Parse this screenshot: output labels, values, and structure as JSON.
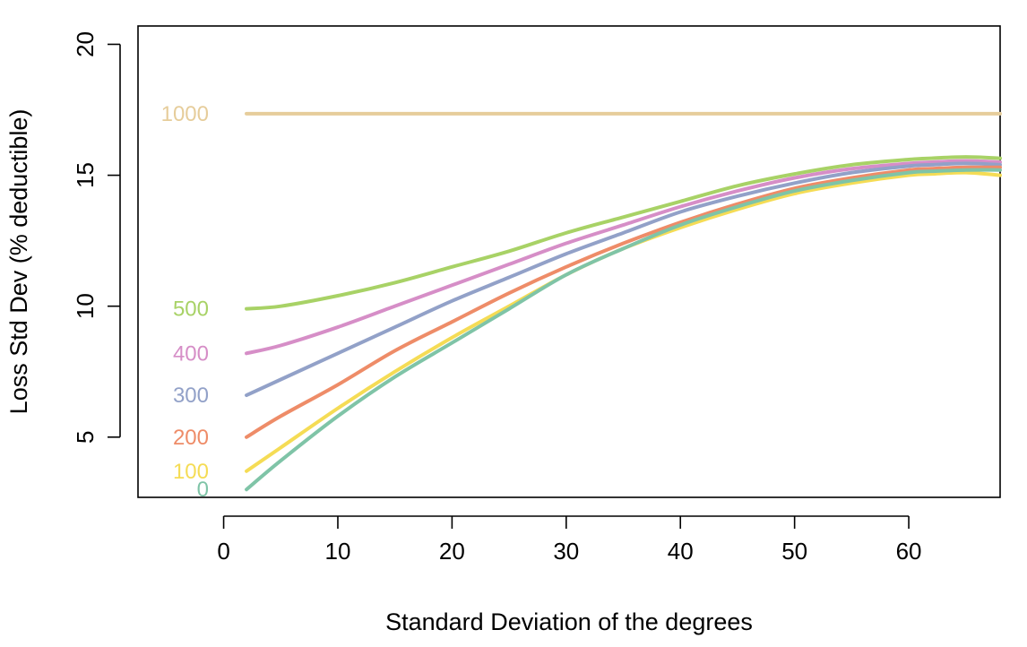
{
  "chart_data": {
    "type": "line",
    "title": "",
    "xlabel": "Standard Deviation of the degrees",
    "ylabel": "Loss Std Dev (% deductible)",
    "xlim": [
      -7.5,
      68
    ],
    "ylim": [
      2.7,
      20.7
    ],
    "x_ticks": [
      0,
      10,
      20,
      30,
      40,
      50,
      60
    ],
    "y_ticks": [
      5,
      10,
      15,
      20
    ],
    "grid": false,
    "legend": "none",
    "x": [
      2,
      5,
      10,
      15,
      20,
      25,
      30,
      35,
      40,
      45,
      50,
      55,
      60,
      62,
      65,
      68
    ],
    "series": [
      {
        "name": "0",
        "color": "#7fc4a7",
        "values": [
          3.0,
          4.1,
          5.8,
          7.3,
          8.6,
          9.9,
          11.2,
          12.2,
          13.1,
          13.8,
          14.4,
          14.8,
          15.1,
          15.15,
          15.2,
          15.2
        ]
      },
      {
        "name": "100",
        "color": "#f5dc55",
        "values": [
          3.7,
          4.6,
          6.1,
          7.5,
          8.8,
          10.0,
          11.2,
          12.2,
          13.0,
          13.7,
          14.3,
          14.7,
          15.0,
          15.05,
          15.1,
          15.0
        ]
      },
      {
        "name": "200",
        "color": "#ee8c68",
        "values": [
          5.0,
          5.8,
          7.0,
          8.3,
          9.4,
          10.5,
          11.5,
          12.4,
          13.2,
          13.9,
          14.5,
          14.9,
          15.2,
          15.25,
          15.3,
          15.3
        ]
      },
      {
        "name": "300",
        "color": "#92a1c8",
        "values": [
          6.6,
          7.2,
          8.2,
          9.2,
          10.2,
          11.1,
          12.0,
          12.8,
          13.6,
          14.2,
          14.7,
          15.1,
          15.35,
          15.4,
          15.45,
          15.4
        ]
      },
      {
        "name": "400",
        "color": "#d68ec7",
        "values": [
          8.2,
          8.5,
          9.2,
          10.0,
          10.8,
          11.6,
          12.4,
          13.1,
          13.8,
          14.4,
          14.9,
          15.25,
          15.45,
          15.5,
          15.55,
          15.5
        ]
      },
      {
        "name": "500",
        "color": "#a8d266",
        "values": [
          9.9,
          10.0,
          10.4,
          10.9,
          11.5,
          12.1,
          12.8,
          13.4,
          14.0,
          14.6,
          15.05,
          15.4,
          15.6,
          15.65,
          15.7,
          15.65
        ]
      },
      {
        "name": "1000",
        "color": "#e6cd9b",
        "values": [
          17.35,
          17.35,
          17.35,
          17.35,
          17.35,
          17.35,
          17.35,
          17.35,
          17.35,
          17.35,
          17.35,
          17.35,
          17.35,
          17.35,
          17.35,
          17.35
        ]
      }
    ]
  }
}
